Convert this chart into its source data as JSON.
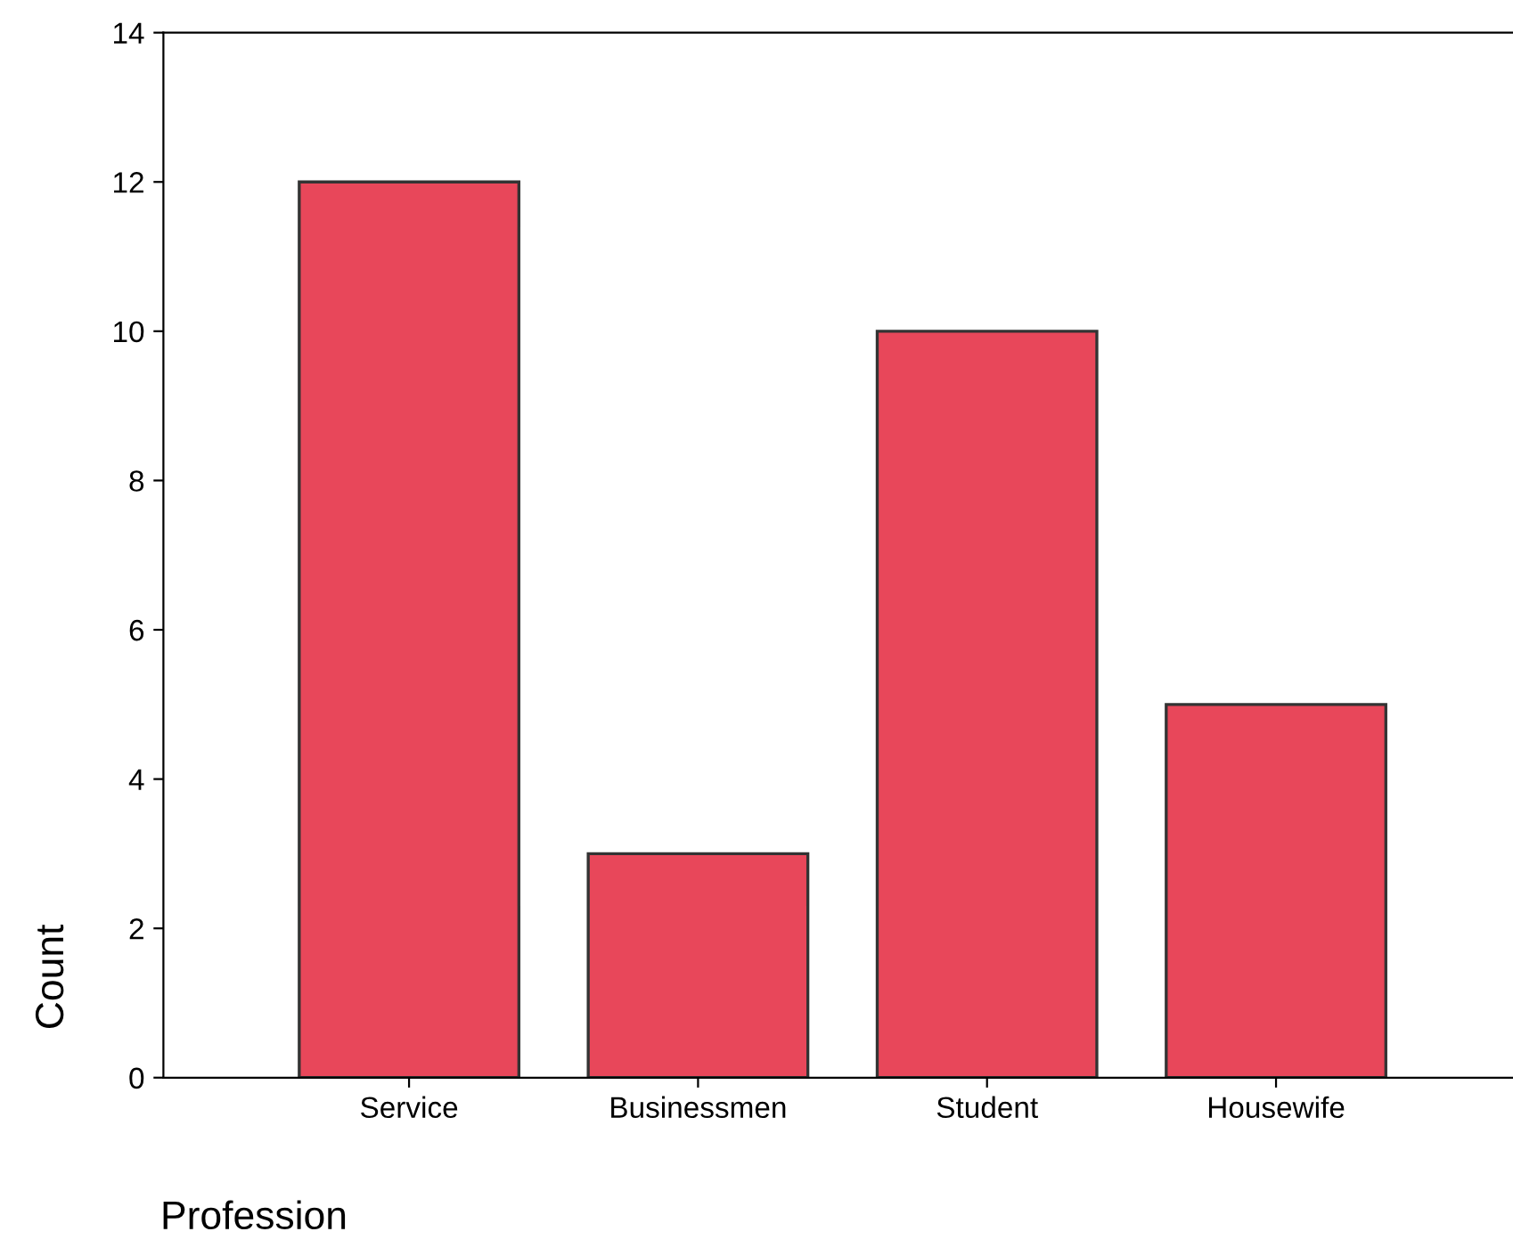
{
  "chart_data": {
    "type": "bar",
    "xlabel": "Profession",
    "ylabel": "Count",
    "categories": [
      "Service",
      "Businessmen",
      "Student",
      "Housewife"
    ],
    "values": [
      12,
      3,
      10,
      5
    ],
    "color": "#e8475a",
    "ylim": [
      0,
      14
    ],
    "yticks": [
      0,
      2,
      4,
      6,
      8,
      10,
      12,
      14
    ],
    "grid": false,
    "legend": false
  }
}
